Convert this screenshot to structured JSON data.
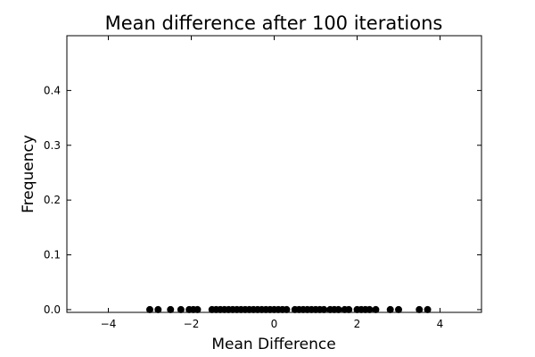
{
  "chart_data": {
    "type": "scatter",
    "title": "Mean difference after 100 iterations",
    "xlabel": "Mean Difference",
    "ylabel": "Frequency",
    "xlim": [
      -5,
      5
    ],
    "ylim": [
      -0.005,
      0.5
    ],
    "xticks": [
      -4,
      -2,
      0,
      2,
      4
    ],
    "xtick_labels": [
      "−4",
      "−2",
      "0",
      "2",
      "4"
    ],
    "yticks": [
      0.0,
      0.1,
      0.2,
      0.3,
      0.4
    ],
    "ytick_labels": [
      "0.0",
      "0.1",
      "0.2",
      "0.3",
      "0.4"
    ],
    "grid": false,
    "marker_color": "#000000",
    "points": [
      {
        "x": -3.0,
        "y": 0
      },
      {
        "x": -2.8,
        "y": 0
      },
      {
        "x": -2.5,
        "y": 0
      },
      {
        "x": -2.25,
        "y": 0
      },
      {
        "x": -2.05,
        "y": 0
      },
      {
        "x": -1.95,
        "y": 0
      },
      {
        "x": -1.85,
        "y": 0
      },
      {
        "x": -1.5,
        "y": 0
      },
      {
        "x": -1.4,
        "y": 0
      },
      {
        "x": -1.3,
        "y": 0
      },
      {
        "x": -1.2,
        "y": 0
      },
      {
        "x": -1.1,
        "y": 0
      },
      {
        "x": -1.0,
        "y": 0
      },
      {
        "x": -0.9,
        "y": 0
      },
      {
        "x": -0.8,
        "y": 0
      },
      {
        "x": -0.7,
        "y": 0
      },
      {
        "x": -0.6,
        "y": 0
      },
      {
        "x": -0.5,
        "y": 0
      },
      {
        "x": -0.4,
        "y": 0
      },
      {
        "x": -0.3,
        "y": 0
      },
      {
        "x": -0.2,
        "y": 0
      },
      {
        "x": -0.1,
        "y": 0
      },
      {
        "x": 0.0,
        "y": 0
      },
      {
        "x": 0.1,
        "y": 0
      },
      {
        "x": 0.2,
        "y": 0
      },
      {
        "x": 0.3,
        "y": 0
      },
      {
        "x": 0.5,
        "y": 0
      },
      {
        "x": 0.6,
        "y": 0
      },
      {
        "x": 0.7,
        "y": 0
      },
      {
        "x": 0.8,
        "y": 0
      },
      {
        "x": 0.9,
        "y": 0
      },
      {
        "x": 1.0,
        "y": 0
      },
      {
        "x": 1.1,
        "y": 0
      },
      {
        "x": 1.2,
        "y": 0
      },
      {
        "x": 1.35,
        "y": 0
      },
      {
        "x": 1.45,
        "y": 0
      },
      {
        "x": 1.55,
        "y": 0
      },
      {
        "x": 1.7,
        "y": 0
      },
      {
        "x": 1.8,
        "y": 0
      },
      {
        "x": 2.0,
        "y": 0
      },
      {
        "x": 2.1,
        "y": 0
      },
      {
        "x": 2.2,
        "y": 0
      },
      {
        "x": 2.3,
        "y": 0
      },
      {
        "x": 2.45,
        "y": 0
      },
      {
        "x": 2.8,
        "y": 0
      },
      {
        "x": 3.0,
        "y": 0
      },
      {
        "x": 3.5,
        "y": 0
      },
      {
        "x": 3.7,
        "y": 0
      }
    ]
  }
}
